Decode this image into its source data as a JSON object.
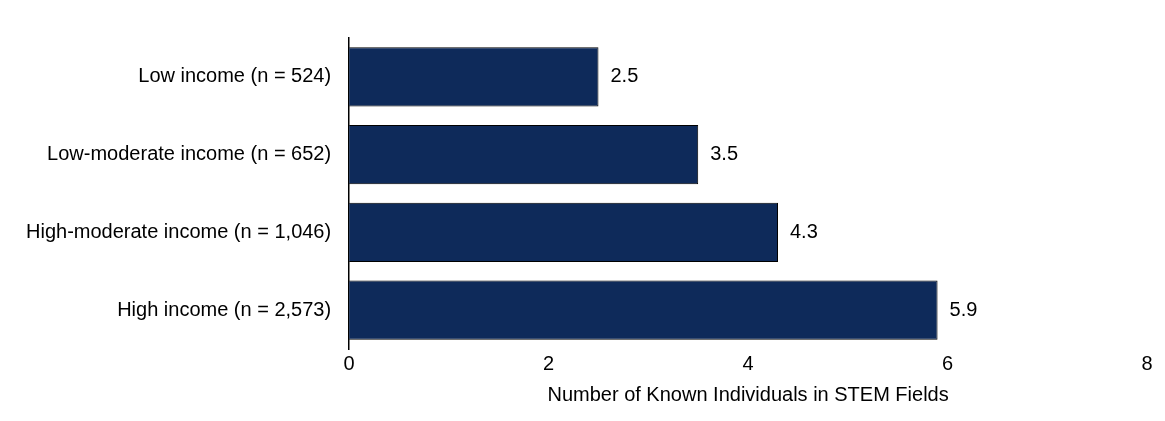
{
  "chart_data": {
    "type": "bar",
    "orientation": "horizontal",
    "xlabel": "Number of Known Individuals in STEM Fields",
    "categories": [
      "Low income (n = 524)",
      "Low-moderate income (n = 652)",
      "High-moderate income (n = 1,046)",
      "High income (n = 2,573)"
    ],
    "values": [
      2.5,
      3.5,
      4.3,
      5.9
    ],
    "color": "#0e2a5a",
    "xlim": [
      0,
      8
    ],
    "xticks": [
      0,
      2,
      4,
      6,
      8
    ],
    "grid": false,
    "legend": false,
    "data_labels": true
  }
}
